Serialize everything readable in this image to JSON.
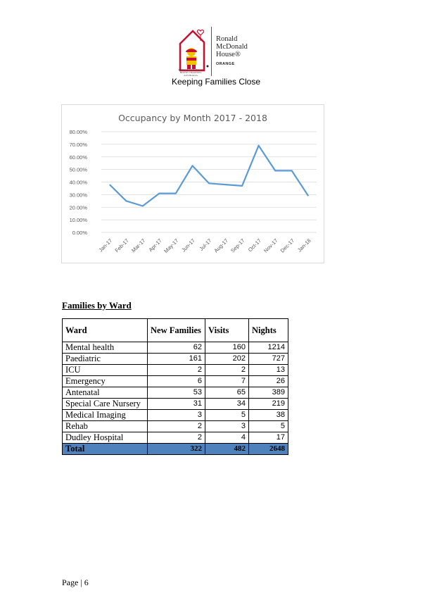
{
  "header": {
    "logo_name": "Ronald McDonald House®",
    "logo_location": "ORANGE",
    "logo_small": "RONALD McDONALD HOUSE CHARITIES AUSTRALIA",
    "tagline": "Keeping Families Close"
  },
  "chart_data": {
    "type": "line",
    "title": "Occupancy by Month 2017 - 2018",
    "categories": [
      "Jan-17",
      "Feb-17",
      "Mar-17",
      "Apr-17",
      "May-17",
      "Jun-17",
      "Jul-17",
      "Aug-17",
      "Sep-17",
      "Oct-17",
      "Nov-17",
      "Dec-17",
      "Jan-18"
    ],
    "series": [
      {
        "name": "Occupancy",
        "values": [
          0.38,
          0.25,
          0.21,
          0.31,
          0.31,
          0.53,
          0.39,
          0.38,
          0.37,
          0.69,
          0.49,
          0.49,
          0.29
        ]
      }
    ],
    "yticks": [
      "0.00%",
      "10.00%",
      "20.00%",
      "30.00%",
      "40.00%",
      "50.00%",
      "60.00%",
      "70.00%",
      "80.00%"
    ],
    "ylim": [
      0,
      0.8
    ],
    "xlabel": "",
    "ylabel": "",
    "grid": true,
    "line_color": "#5b9bd5"
  },
  "section": {
    "title": "Families by Ward"
  },
  "table": {
    "headers": [
      "Ward",
      "New Families",
      "Visits",
      "Nights"
    ],
    "rows": [
      [
        "Mental health",
        "62",
        "160",
        "1214"
      ],
      [
        "Paediatric",
        "161",
        "202",
        "727"
      ],
      [
        "ICU",
        "2",
        "2",
        "13"
      ],
      [
        "Emergency",
        "6",
        "7",
        "26"
      ],
      [
        "Antenatal",
        "53",
        "65",
        "389"
      ],
      [
        "Special Care Nursery",
        "31",
        "34",
        "219"
      ],
      [
        "Medical Imaging",
        "3",
        "5",
        "38"
      ],
      [
        "Rehab",
        "2",
        "3",
        "5"
      ],
      [
        "Dudley Hospital",
        "2",
        "4",
        "17"
      ]
    ],
    "total": [
      "Total",
      "322",
      "482",
      "2648"
    ],
    "total_color": "#4f81bd"
  },
  "footer": {
    "page": "Page | 6"
  }
}
